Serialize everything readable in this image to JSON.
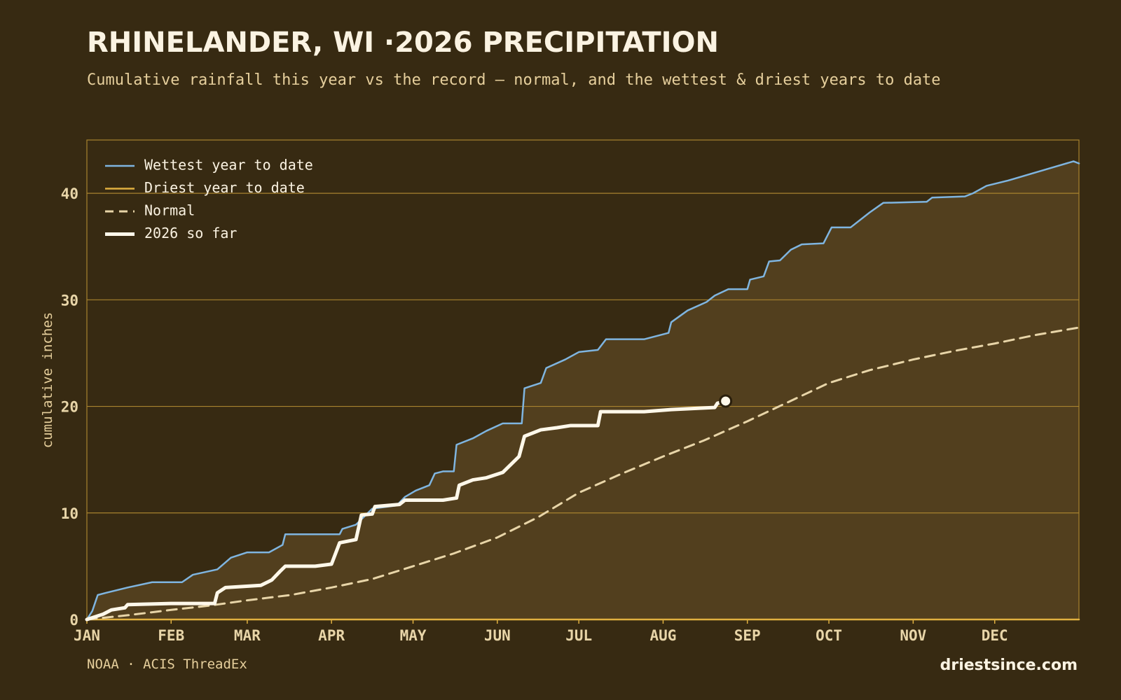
{
  "chart_data": {
    "type": "line",
    "title": "RHINELANDER, WI ·2026 PRECIPITATION",
    "subtitle": "Cumulative rainfall this year vs the record — normal, and the wettest & driest years to date",
    "ylabel": "cumulative inches",
    "source": "NOAA · ACIS ThreadEx",
    "brand": "driestsince.com",
    "xlim": [
      0,
      365
    ],
    "xticks": [
      {
        "value": 0,
        "label": "JAN"
      },
      {
        "value": 31,
        "label": "FEB"
      },
      {
        "value": 59,
        "label": "MAR"
      },
      {
        "value": 90,
        "label": "APR"
      },
      {
        "value": 120,
        "label": "MAY"
      },
      {
        "value": 151,
        "label": "JUN"
      },
      {
        "value": 181,
        "label": "JUL"
      },
      {
        "value": 212,
        "label": "AUG"
      },
      {
        "value": 243,
        "label": "SEP"
      },
      {
        "value": 273,
        "label": "OCT"
      },
      {
        "value": 304,
        "label": "NOV"
      },
      {
        "value": 334,
        "label": "DEC"
      }
    ],
    "ylim": [
      0,
      45
    ],
    "yticks": [
      0,
      10,
      20,
      30,
      40
    ],
    "grid": true,
    "legend": "top-left",
    "series": [
      {
        "name": "Wettest year to date",
        "color": "#7fb5e0",
        "style": "solid",
        "area_color": "#523f1e",
        "x": [
          0,
          2,
          4,
          7,
          15,
          24,
          35,
          39,
          48,
          53,
          59,
          67,
          72,
          73,
          93,
          94,
          99,
          101,
          105,
          114,
          117,
          121,
          126,
          128,
          131,
          135,
          136,
          142,
          147,
          153,
          160,
          161,
          167,
          169,
          176,
          181,
          188,
          191,
          205,
          214,
          215,
          221,
          228,
          231,
          236,
          243,
          244,
          249,
          251,
          255,
          259,
          263,
          271,
          274,
          281,
          288,
          293,
          309,
          311,
          323,
          326,
          331,
          339,
          347,
          355,
          363,
          365
        ],
        "values": [
          0,
          0.8,
          2.3,
          2.5,
          3.0,
          3.5,
          3.5,
          4.2,
          4.7,
          5.8,
          6.3,
          6.3,
          7.0,
          8.0,
          8.0,
          8.5,
          8.9,
          9.4,
          10.4,
          10.7,
          11.5,
          12.1,
          12.6,
          13.7,
          13.9,
          13.9,
          16.4,
          17.0,
          17.7,
          18.4,
          18.4,
          21.7,
          22.2,
          23.6,
          24.4,
          25.1,
          25.3,
          26.3,
          26.3,
          26.9,
          27.9,
          29.0,
          29.8,
          30.4,
          31.0,
          31.0,
          31.9,
          32.2,
          33.6,
          33.7,
          34.7,
          35.2,
          35.3,
          36.8,
          36.8,
          38.2,
          39.1,
          39.2,
          39.6,
          39.7,
          40.0,
          40.7,
          41.2,
          41.8,
          42.4,
          43.0,
          42.8
        ]
      },
      {
        "name": "Driest year to date",
        "color": "#e0b040",
        "style": "solid",
        "x": [
          0,
          120,
          240,
          365
        ],
        "values": [
          0,
          0,
          0,
          0
        ]
      },
      {
        "name": "Normal",
        "color": "#e8d5a8",
        "style": "dashed",
        "x": [
          0,
          15,
          31,
          45,
          59,
          75,
          90,
          105,
          120,
          135,
          151,
          166,
          181,
          196,
          212,
          227,
          243,
          258,
          273,
          288,
          304,
          319,
          334,
          349,
          365
        ],
        "values": [
          0,
          0.4,
          0.9,
          1.3,
          1.8,
          2.3,
          3.0,
          3.8,
          5.0,
          6.2,
          7.7,
          9.6,
          11.9,
          13.6,
          15.3,
          16.8,
          18.6,
          20.4,
          22.2,
          23.4,
          24.4,
          25.2,
          25.9,
          26.7,
          27.4
        ]
      },
      {
        "name": "2026 so far",
        "color": "#fff8ea",
        "style": "bold",
        "x": [
          0,
          6,
          9,
          14,
          15,
          31,
          47,
          48,
          51,
          64,
          68,
          71,
          73,
          84,
          90,
          93,
          99,
          101,
          105,
          106,
          115,
          117,
          131,
          136,
          137,
          142,
          147,
          153,
          159,
          161,
          167,
          173,
          178,
          188,
          189,
          205,
          215,
          231,
          232,
          235
        ],
        "values": [
          0,
          0.5,
          0.9,
          1.1,
          1.4,
          1.5,
          1.5,
          2.5,
          3.0,
          3.2,
          3.7,
          4.5,
          5.0,
          5.0,
          5.2,
          7.2,
          7.5,
          9.8,
          9.9,
          10.6,
          10.8,
          11.2,
          11.2,
          11.4,
          12.6,
          13.1,
          13.3,
          13.8,
          15.3,
          17.2,
          17.8,
          18.0,
          18.2,
          18.2,
          19.5,
          19.5,
          19.7,
          19.9,
          20.3,
          20.5
        ]
      }
    ]
  }
}
